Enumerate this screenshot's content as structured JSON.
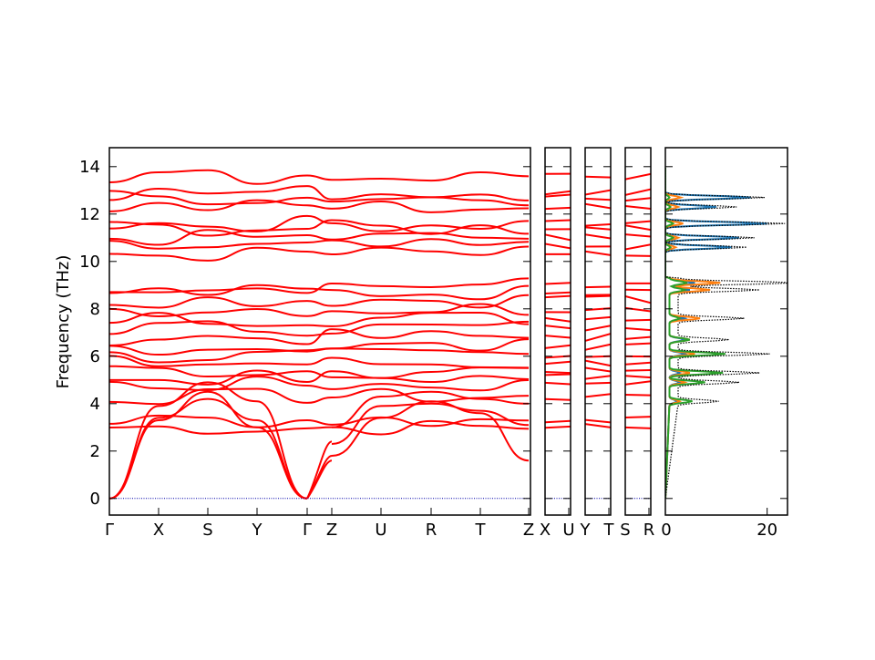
{
  "chart_data": {
    "type": "line",
    "ylabel": "Frequency (THz)",
    "ylim": [
      -0.7,
      14.8
    ],
    "yticks": [
      0,
      2,
      4,
      6,
      8,
      10,
      12,
      14
    ],
    "band_color": "#ff0000",
    "zero_line_color": "#0000aa",
    "segments": [
      {
        "path_labels": [
          "Γ",
          "X",
          "S",
          "Y",
          "Γ",
          "Z",
          "U",
          "R",
          "T",
          "Z"
        ]
      },
      {
        "path_labels": [
          "X",
          "U"
        ]
      },
      {
        "path_labels": [
          "Y",
          "T"
        ]
      },
      {
        "path_labels": [
          "S",
          "R"
        ]
      }
    ],
    "tick_labels": [
      "Γ",
      "X",
      "S",
      "Y",
      "Γ",
      "Z",
      "U",
      "R",
      "T",
      "Z",
      "X",
      "U",
      "Y",
      "T",
      "S",
      "R"
    ],
    "bands_gamma_x": [
      0,
      3.35
    ],
    "acoustic_branches": [
      {
        "points": [
          [
            0,
            0
          ],
          [
            1,
            3.4
          ],
          [
            2,
            4.2
          ],
          [
            3,
            3.3
          ],
          [
            4,
            0
          ]
        ]
      },
      {
        "points": [
          [
            0,
            0
          ],
          [
            1,
            3.3
          ],
          [
            2,
            4.5
          ],
          [
            3,
            3.0
          ],
          [
            4,
            0
          ]
        ]
      },
      {
        "points": [
          [
            0,
            0
          ],
          [
            1,
            3.9
          ],
          [
            2,
            4.9
          ],
          [
            3,
            4.1
          ],
          [
            4,
            0
          ]
        ]
      }
    ],
    "representative_optical_levels": [
      3.0,
      3.3,
      4.3,
      4.8,
      5.1,
      5.4,
      5.7,
      6.0,
      6.4,
      6.8,
      7.2,
      7.6,
      8.0,
      8.4,
      8.7,
      9.0,
      10.3,
      10.6,
      11.0,
      11.4,
      11.6,
      12.3,
      12.7,
      12.9,
      13.6
    ],
    "dos": {
      "xlim": [
        0,
        24
      ],
      "xticks": [
        0,
        20
      ],
      "series": [
        {
          "color": "#1f77b4",
          "style": "solid"
        },
        {
          "color": "#ff7f0e",
          "style": "solid"
        },
        {
          "color": "#2ca02c",
          "style": "solid"
        },
        {
          "color": "#000000",
          "style": "dotted"
        }
      ],
      "peaks": [
        {
          "freq": 12.7,
          "total": 19.5,
          "blue": 16.8,
          "orange": 3.0,
          "green": 0.8
        },
        {
          "freq": 12.3,
          "total": 14.0,
          "blue": 10.0,
          "orange": 2.5,
          "green": 1.0
        },
        {
          "freq": 11.6,
          "total": 23.5,
          "blue": 20.0,
          "orange": 3.5,
          "green": 1.5
        },
        {
          "freq": 11.0,
          "total": 17.5,
          "blue": 14.5,
          "orange": 2.5,
          "green": 1.5
        },
        {
          "freq": 10.6,
          "total": 16.0,
          "blue": 13.0,
          "orange": 2.0,
          "green": 1.0
        },
        {
          "freq": 9.1,
          "total": 23.0,
          "blue": 5.0,
          "orange": 10.0,
          "green": 3.5
        },
        {
          "freq": 8.8,
          "total": 16.0,
          "blue": 4.0,
          "orange": 8.0,
          "green": 3.0
        },
        {
          "freq": 7.6,
          "total": 13.0,
          "blue": 3.0,
          "orange": 6.0,
          "green": 2.0
        },
        {
          "freq": 6.7,
          "total": 10.0,
          "blue": 3.0,
          "orange": 4.0,
          "green": 4.0
        },
        {
          "freq": 6.1,
          "total": 18.0,
          "blue": 3.0,
          "orange": 5.0,
          "green": 11.0
        },
        {
          "freq": 5.3,
          "total": 16.0,
          "blue": 2.0,
          "orange": 4.0,
          "green": 10.5
        },
        {
          "freq": 4.9,
          "total": 12.0,
          "blue": 2.0,
          "orange": 3.0,
          "green": 7.0
        },
        {
          "freq": 4.1,
          "total": 8.0,
          "blue": 1.5,
          "orange": 2.0,
          "green": 4.5
        }
      ]
    }
  }
}
